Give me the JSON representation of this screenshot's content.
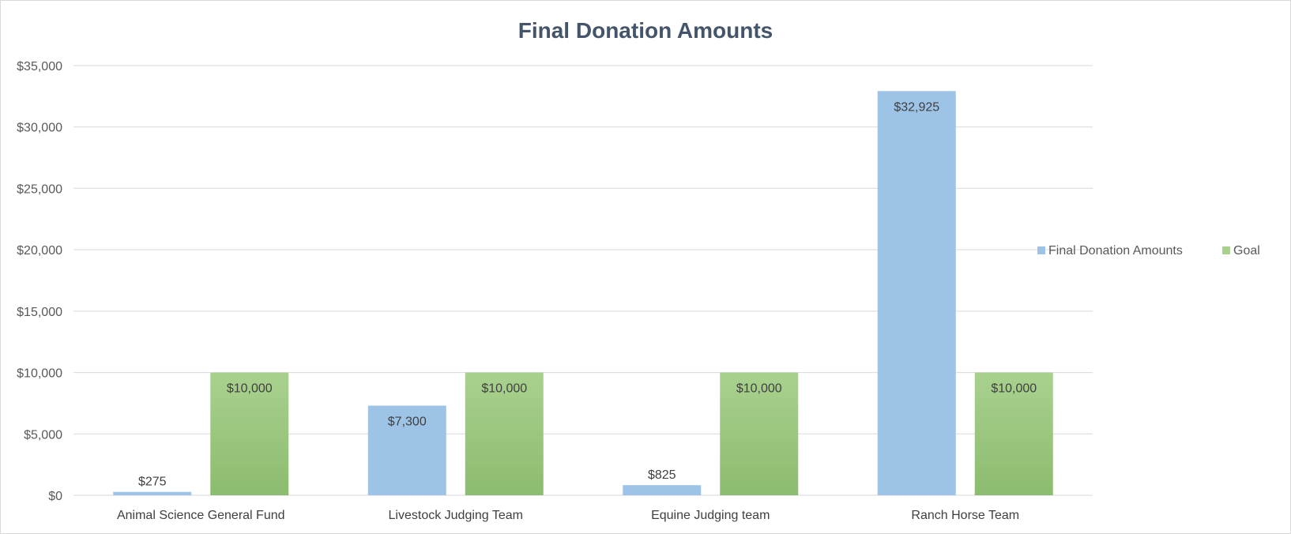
{
  "chart_data": {
    "type": "bar",
    "title": "Final Donation Amounts",
    "categories": [
      "Animal Science General Fund",
      "Livestock Judging Team",
      "Equine Judging team",
      "Ranch Horse Team"
    ],
    "series": [
      {
        "name": "Final Donation Amounts",
        "values": [
          275,
          7300,
          825,
          32925
        ],
        "labels": [
          "$275",
          "$7,300",
          "$825",
          "$32,925"
        ],
        "color": "#9dc3e6"
      },
      {
        "name": "Goal",
        "values": [
          10000,
          10000,
          10000,
          10000
        ],
        "labels": [
          "$10,000",
          "$10,000",
          "$10,000",
          "$10,000"
        ],
        "color": "#a9d18e"
      }
    ],
    "y_ticks": [
      0,
      5000,
      10000,
      15000,
      20000,
      25000,
      30000,
      35000
    ],
    "y_tick_labels": [
      "$0",
      "$5,000",
      "$10,000",
      "$15,000",
      "$20,000",
      "$25,000",
      "$30,000",
      "$35,000"
    ],
    "ylim": [
      0,
      35000
    ],
    "xlabel": "",
    "ylabel": "",
    "grid": true,
    "legend_position": "right"
  }
}
